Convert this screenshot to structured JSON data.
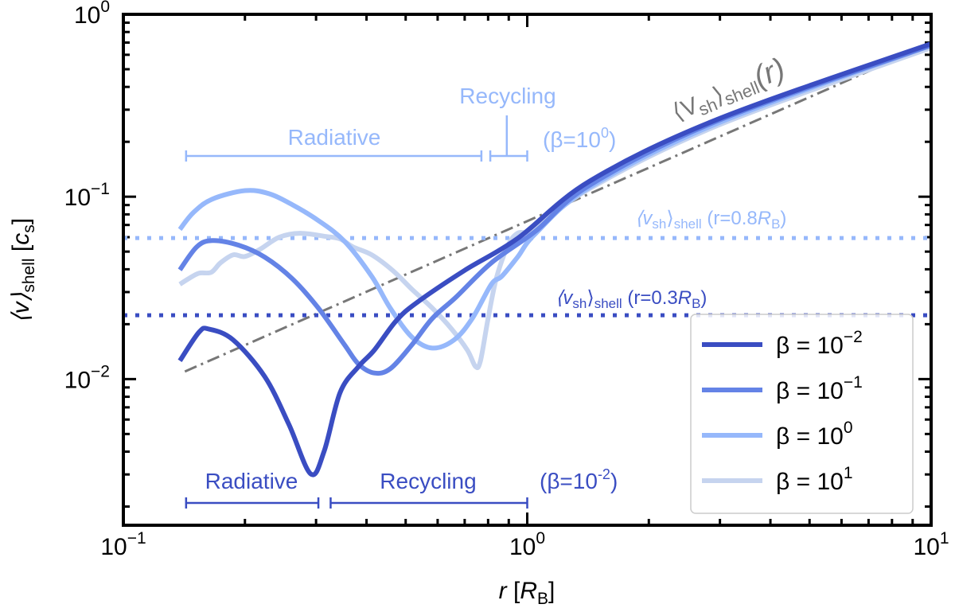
{
  "chart_data": {
    "type": "line",
    "xscale": "log",
    "yscale": "log",
    "xlim": [
      0.1,
      10
    ],
    "ylim": [
      0.00158,
      1
    ],
    "grid": false,
    "xlabel": {
      "main": "r",
      "bracket_open": "[",
      "unit": "R",
      "unit_sub": "B",
      "bracket_close": "]"
    },
    "ylabel": {
      "main": "⟨v⟩",
      "sub": "shell",
      "unit_open": "[",
      "unit": "c",
      "unit_sub": "s",
      "unit_close": "]"
    },
    "xticks": [
      {
        "value": 0.1,
        "base": "10",
        "exp": "−1"
      },
      {
        "value": 1,
        "base": "10",
        "exp": "0"
      },
      {
        "value": 10,
        "base": "10",
        "exp": "1"
      }
    ],
    "yticks": [
      {
        "value": 1,
        "base": "10",
        "exp": "0"
      },
      {
        "value": 0.1,
        "base": "10",
        "exp": "−1"
      },
      {
        "value": 0.01,
        "base": "10",
        "exp": "−2"
      }
    ],
    "legend_placement": "lower-right",
    "series": [
      {
        "name": "β = 10^-2",
        "legend_base": "β = 10",
        "legend_exp": "−2",
        "color": "#3a4dc2",
        "x": [
          0.138,
          0.154,
          0.163,
          0.187,
          0.224,
          0.257,
          0.291,
          0.314,
          0.344,
          0.382,
          0.418,
          0.473,
          0.532,
          0.698,
          0.946,
          1.43,
          2.95,
          10
        ],
        "y": [
          0.0126,
          0.0181,
          0.0188,
          0.0164,
          0.0103,
          0.00564,
          0.00302,
          0.00401,
          0.00843,
          0.0117,
          0.0144,
          0.0208,
          0.0262,
          0.0393,
          0.059,
          0.122,
          0.265,
          0.69
        ]
      },
      {
        "name": "β = 10^-1",
        "legend_base": "β = 10",
        "legend_exp": "−1",
        "color": "#6483e6",
        "x": [
          0.138,
          0.152,
          0.166,
          0.193,
          0.224,
          0.262,
          0.304,
          0.353,
          0.382,
          0.418,
          0.458,
          0.518,
          0.582,
          0.667,
          0.815,
          1.05,
          1.43,
          2.95,
          10
        ],
        "y": [
          0.0397,
          0.0531,
          0.0575,
          0.0542,
          0.0466,
          0.0355,
          0.0245,
          0.0154,
          0.0121,
          0.0108,
          0.0114,
          0.0154,
          0.0215,
          0.0282,
          0.0434,
          0.0649,
          0.116,
          0.26,
          0.676
        ]
      },
      {
        "name": "β = 10^0",
        "legend_base": "β = 10",
        "legend_exp": "0",
        "color": "#96b8fb",
        "x": [
          0.138,
          0.149,
          0.166,
          0.2,
          0.229,
          0.262,
          0.304,
          0.353,
          0.412,
          0.458,
          0.518,
          0.582,
          0.659,
          0.731,
          0.815,
          0.865,
          0.946,
          1.05,
          1.43,
          2.95,
          10
        ],
        "y": [
          0.0662,
          0.0818,
          0.097,
          0.108,
          0.104,
          0.0904,
          0.074,
          0.0569,
          0.0366,
          0.0245,
          0.017,
          0.0148,
          0.0164,
          0.0215,
          0.0331,
          0.0366,
          0.0466,
          0.063,
          0.113,
          0.252,
          0.676
        ]
      },
      {
        "name": "β = 10^1",
        "legend_base": "β = 10",
        "legend_exp": "1",
        "color": "#c6d4ef",
        "x": [
          0.138,
          0.145,
          0.154,
          0.165,
          0.174,
          0.187,
          0.2,
          0.218,
          0.243,
          0.274,
          0.318,
          0.344,
          0.37,
          0.412,
          0.465,
          0.518,
          0.582,
          0.65,
          0.711,
          0.745,
          0.766,
          0.8,
          0.838,
          0.893,
          0.946,
          1.05,
          1.43,
          2.95,
          10
        ],
        "y": [
          0.0331,
          0.0355,
          0.0381,
          0.0385,
          0.0434,
          0.048,
          0.047,
          0.0515,
          0.0599,
          0.063,
          0.0605,
          0.0587,
          0.0531,
          0.048,
          0.0393,
          0.0311,
          0.0245,
          0.0188,
          0.0144,
          0.0117,
          0.0126,
          0.0215,
          0.0355,
          0.0531,
          0.063,
          0.0669,
          0.111,
          0.245,
          0.656
        ]
      }
    ],
    "reference_lines": {
      "scaling": {
        "color": "#777777",
        "style": "dash-dot",
        "x": [
          0.142,
          10
        ],
        "y": [
          0.011,
          0.69
        ],
        "label": {
          "v": "⟨V",
          "sub1": "sh",
          "close": "⟩",
          "sub2": "shell",
          "arg": "(r)"
        }
      },
      "shell_08": {
        "color": "#96b8fb",
        "style": "dotted",
        "y": 0.0593,
        "label": {
          "v": "⟨v",
          "sub1": "sh",
          "close": "⟩",
          "sub2": "shell",
          "arg_open": " (r=0.8",
          "R": "R",
          "Rsub": "B",
          "arg_close": ")"
        }
      },
      "shell_03": {
        "color": "#3a4dc2",
        "style": "dotted",
        "y": 0.0224,
        "label": {
          "v": "⟨v",
          "sub1": "sh",
          "close": "⟩",
          "sub2": "shell",
          "arg_open": " (r=0.3",
          "R": "R",
          "Rsub": "B",
          "arg_close": ")"
        }
      }
    },
    "annotations": {
      "beta_1e0": {
        "color": "#96b8fb",
        "radiative": {
          "label": "Radiative",
          "from": 0.143,
          "to": 0.77
        },
        "recycling": {
          "label": "Recycling",
          "from": 0.81,
          "to": 1.0,
          "marker": 0.89
        },
        "tag_base": "(β=10",
        "tag_exp": "0",
        "tag_close": ")"
      },
      "beta_1e-2": {
        "color": "#3a4dc2",
        "radiative": {
          "label": "Radiative",
          "from": 0.143,
          "to": 0.304
        },
        "recycling": {
          "label": "Recycling",
          "from": 0.326,
          "to": 1.0
        },
        "tag_base": "(β=10",
        "tag_exp": "-2",
        "tag_close": ")"
      }
    }
  }
}
